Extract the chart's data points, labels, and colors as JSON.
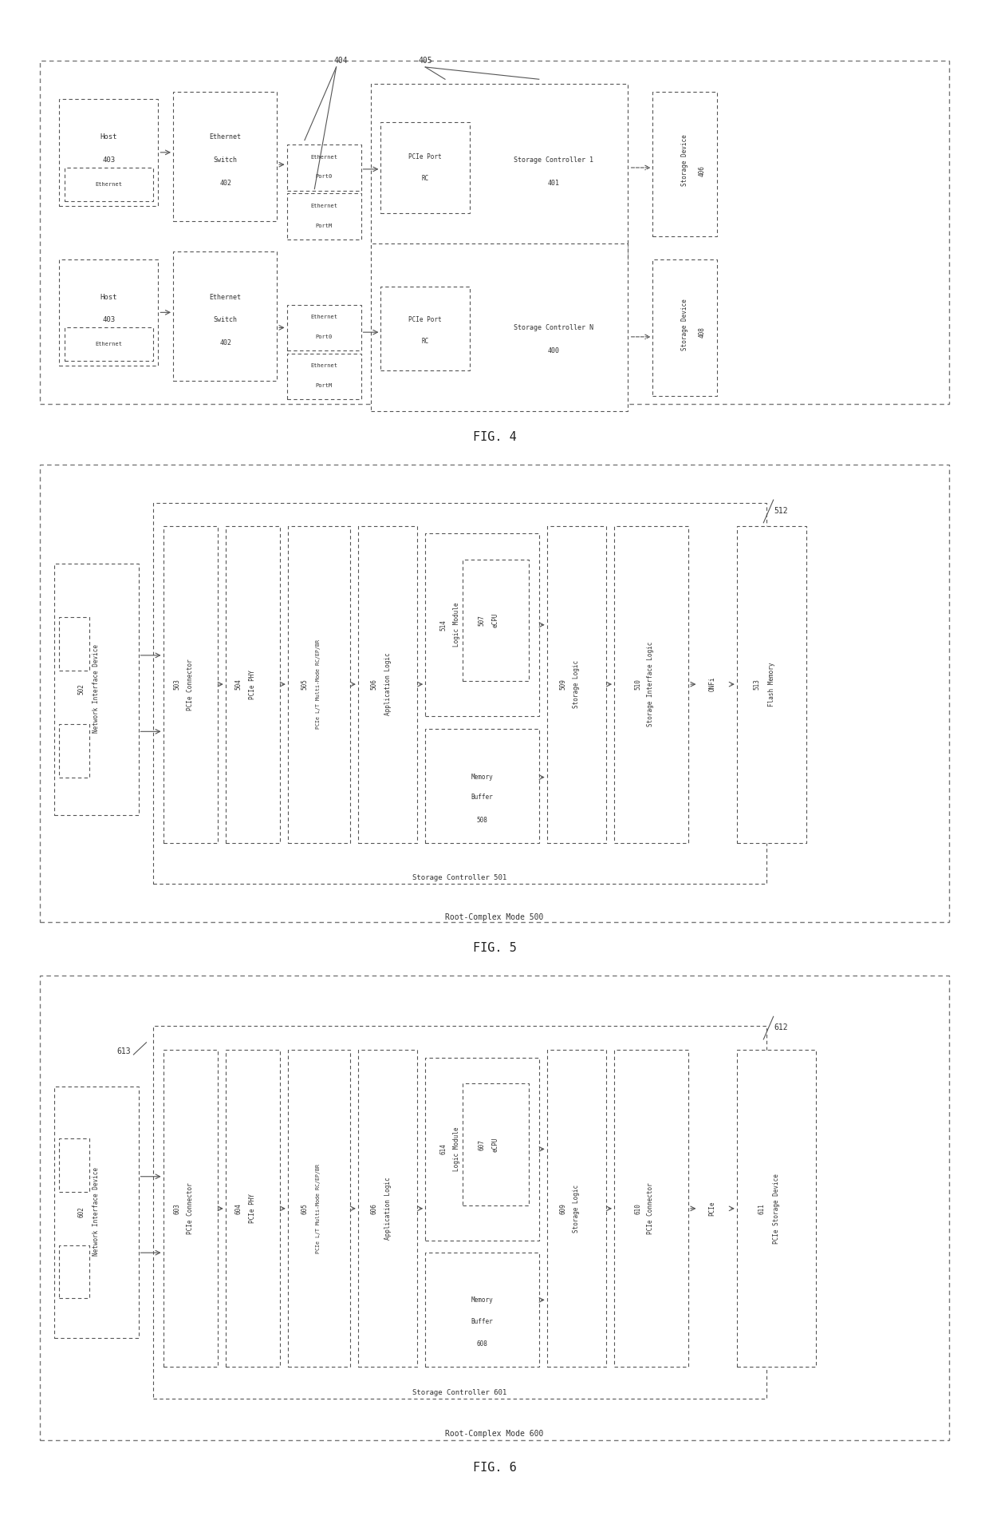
{
  "fig_width": 12.4,
  "fig_height": 19.09,
  "bg_color": "#ffffff",
  "fig4_title": "FIG. 4",
  "fig5_title": "FIG. 5",
  "fig6_title": "FIG. 6"
}
